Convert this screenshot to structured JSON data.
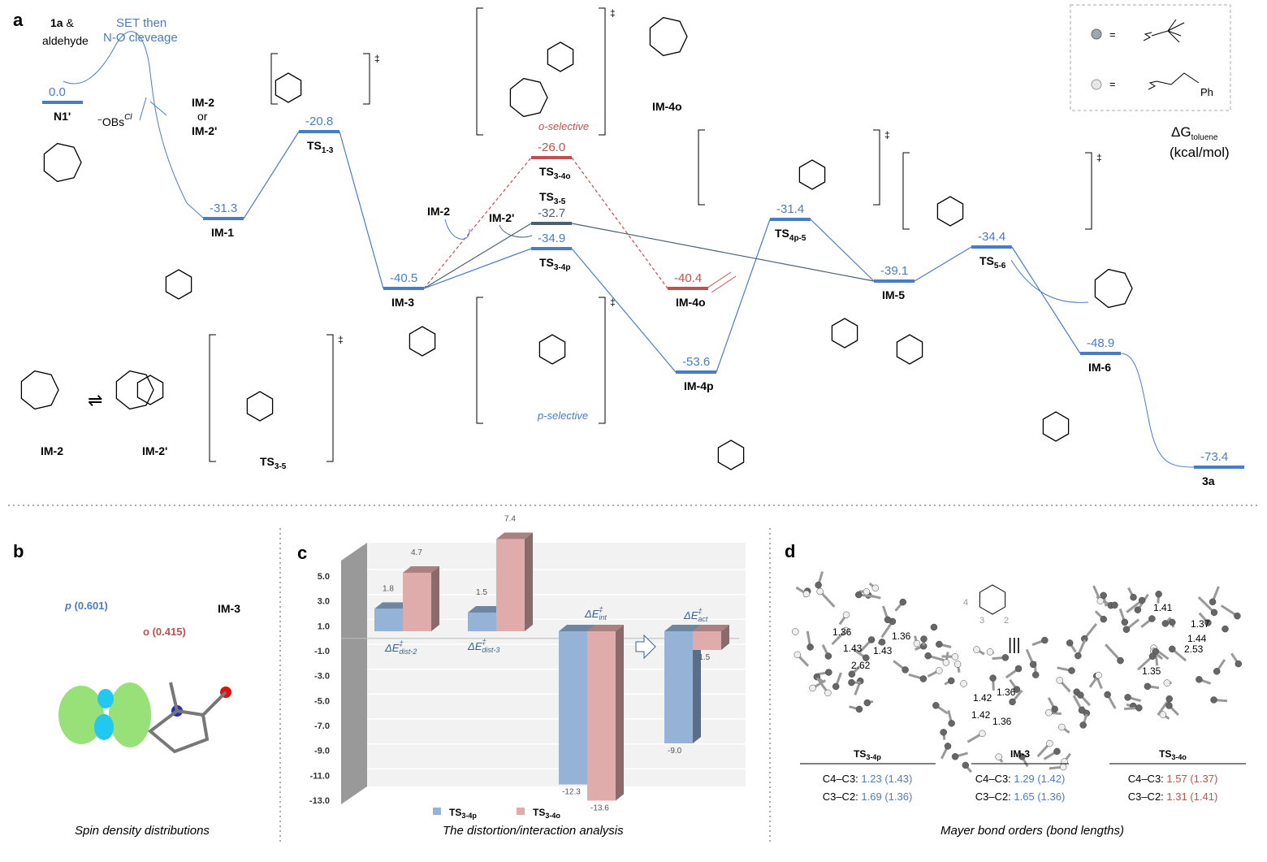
{
  "panels": {
    "a": "a",
    "b": "b",
    "c": "c",
    "d": "d"
  },
  "colors": {
    "blue": "#4a7cc4",
    "red": "#c0504d",
    "grey": "#4a6070",
    "bar_blue": "#95b3d7",
    "bar_red": "#e0acab"
  },
  "legend_box": {
    "eq1": "=",
    "eq2": "=",
    "ph": "Ph",
    "bead1": "grey-sphere (neopentyl)",
    "bead2": "white-sphere (phenethyl)"
  },
  "axis_title": {
    "main": "ΔG",
    "sub": "toluene",
    "unit": "(kcal/mol)"
  },
  "start": {
    "reagent": "1a",
    "amp": " &",
    "aldehyde": "aldehyde",
    "set1": "SET then",
    "set2": "N-O cleveage",
    "obs": "OBs",
    "obs_sup": "Cl",
    "obs_minus": "−",
    "im2": "IM-2",
    "or": "or",
    "im2p": "IM-2'"
  },
  "levels": [
    {
      "id": "N1",
      "energy": "0.0",
      "main": "N1'",
      "sub": "",
      "color": "blue"
    },
    {
      "id": "IM1",
      "energy": "-31.3",
      "main": "IM-1",
      "sub": "",
      "color": "blue"
    },
    {
      "id": "TS13",
      "energy": "-20.8",
      "main": "TS",
      "sub": "1-3",
      "color": "blue"
    },
    {
      "id": "IM3",
      "energy": "-40.5",
      "main": "IM-3",
      "sub": "",
      "color": "blue"
    },
    {
      "id": "TS34o",
      "energy": "-26.0",
      "main": "TS",
      "sub": "3-4o",
      "color": "red"
    },
    {
      "id": "TS35",
      "energy": "-32.7",
      "main": "TS",
      "sub": "3-5",
      "color": "grey"
    },
    {
      "id": "TS34p",
      "energy": "-34.9",
      "main": "TS",
      "sub": "3-4p",
      "color": "blue"
    },
    {
      "id": "IM4o",
      "energy": "-40.4",
      "main": "IM-4o",
      "sub": "",
      "color": "red"
    },
    {
      "id": "IM4p",
      "energy": "-53.6",
      "main": "IM-4p",
      "sub": "",
      "color": "blue"
    },
    {
      "id": "TS4p5",
      "energy": "-31.4",
      "main": "TS",
      "sub": "4p-5",
      "color": "blue"
    },
    {
      "id": "IM5",
      "energy": "-39.1",
      "main": "IM-5",
      "sub": "",
      "color": "blue"
    },
    {
      "id": "TS56",
      "energy": "-34.4",
      "main": "TS",
      "sub": "5-6",
      "color": "blue"
    },
    {
      "id": "IM6",
      "energy": "-48.9",
      "main": "IM-6",
      "sub": "",
      "color": "blue"
    },
    {
      "id": "P3a",
      "energy": "-73.4",
      "main": "3a",
      "sub": "",
      "color": "blue"
    }
  ],
  "annotations": {
    "im2_arrow": "IM-2",
    "im2p_arrow": "IM-2'",
    "o_selective": "o-selective",
    "p_selective": "p-selective",
    "dagger": "‡",
    "im4o_struct": "IM-4o",
    "im2_bottom": "IM-2",
    "im2p_bottom": "IM-2'",
    "ts35_bottom_main": "TS",
    "ts35_bottom_sub": "3-5",
    "equilibrium": "⇌"
  },
  "panel_b": {
    "p_label": "p",
    "p_value": "(0.601)",
    "o_label": "o",
    "o_value": "(0.415)",
    "molecule": "IM-3",
    "caption": "Spin density distributions"
  },
  "chart_data": {
    "type": "bar",
    "categories": [
      "ΔE‡dist-2",
      "ΔE‡dist-3",
      "ΔE‡int",
      "ΔE‡act"
    ],
    "category_labels": [
      {
        "main": "ΔE",
        "sup": "‡",
        "sub": "dist-2"
      },
      {
        "main": "ΔE",
        "sup": "‡",
        "sub": "dist-3"
      },
      {
        "main": "ΔE",
        "sup": "‡",
        "sub": "int"
      },
      {
        "main": "ΔE",
        "sup": "‡",
        "sub": "act"
      }
    ],
    "series": [
      {
        "name": "TS3-4p",
        "name_main": "TS",
        "name_sub": "3-4p",
        "color": "#95b3d7",
        "values": [
          1.8,
          1.5,
          -12.3,
          -9.0
        ]
      },
      {
        "name": "TS3-4o",
        "name_main": "TS",
        "name_sub": "3-4o",
        "color": "#e0acab",
        "values": [
          4.7,
          7.4,
          -13.6,
          -1.5
        ]
      }
    ],
    "value_labels": [
      [
        "1.8",
        "1.5",
        "-12.3",
        "-9.0"
      ],
      [
        "4.7",
        "7.4",
        "-13.6",
        "-1.5"
      ]
    ],
    "yticks": [
      "5.0",
      "3.0",
      "1.0",
      "-1.0",
      "-3.0",
      "-5.0",
      "-7.0",
      "-9.0",
      "-11.0",
      "-13.0"
    ],
    "ylim": [
      -13,
      7
    ],
    "legend": "bottom",
    "style": "3d",
    "caption": "The distortion/interaction analysis"
  },
  "panel_d": {
    "ts34p": {
      "title_main": "TS",
      "title_sub": "3-4p",
      "b1": "C4–C3: ",
      "v1": "1.23 (1.43)",
      "b2": "C3–C2: ",
      "v2": "1.69 (1.36)",
      "dists": [
        "1.36",
        "1.36",
        "1.43",
        "1.43",
        "2.62"
      ]
    },
    "im3": {
      "title": "IM-3",
      "b1": "C4–C3: ",
      "v1": "1.29 (1.42)",
      "b2": "C3–C2: ",
      "v2": "1.65 (1.36)",
      "dists": [
        "1.36",
        "1.42",
        "1.42",
        "1.36"
      ],
      "num4": "4",
      "num3": "3",
      "num2": "2",
      "equiv": "|||"
    },
    "ts34o": {
      "title_main": "TS",
      "title_sub": "3-4o",
      "b1": "C4–C3: ",
      "v1": "1.57 (1.37)",
      "b2": "C3–C2: ",
      "v2": "1.31 (1.41)",
      "dists": [
        "1.41",
        "1.37",
        "1.44",
        "2.53",
        "1.35"
      ]
    },
    "caption": "Mayer bond orders (bond lengths)"
  }
}
